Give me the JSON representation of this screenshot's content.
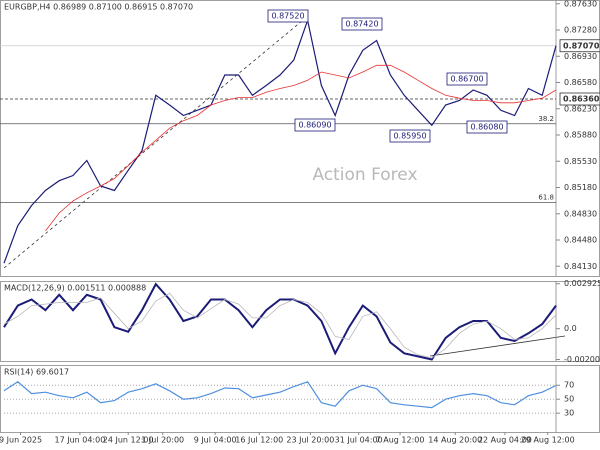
{
  "chart_data": [
    {
      "type": "line",
      "title": "EURGBP,H4 0.86989 0.87100 0.86915 0.87070",
      "watermark": "Action Forex",
      "xlim": [
        0,
        40
      ],
      "ylim": [
        0.84,
        0.8768
      ],
      "yticks": [
        {
          "value": 0.8763,
          "label": "0.87630"
        },
        {
          "value": 0.8728,
          "label": "0.87280"
        },
        {
          "value": 0.8693,
          "label": "0.86930"
        },
        {
          "value": 0.8658,
          "label": "0.86580"
        },
        {
          "value": 0.8623,
          "label": "0.86230"
        },
        {
          "value": 0.8588,
          "label": "0.85880"
        },
        {
          "value": 0.8553,
          "label": "0.85530"
        },
        {
          "value": 0.8518,
          "label": "0.85180"
        },
        {
          "value": 0.8483,
          "label": "0.84830"
        },
        {
          "value": 0.8448,
          "label": "0.84480"
        },
        {
          "value": 0.8413,
          "label": "0.84130"
        }
      ],
      "price_labels": [
        {
          "value": 0.8707,
          "label": "0.87070"
        },
        {
          "value": 0.8636,
          "label": "0.86360"
        }
      ],
      "reference_lines": [
        {
          "value": 0.8603,
          "label": "38.2"
        },
        {
          "value": 0.8498,
          "label": "61.8"
        }
      ],
      "annotations": [
        "0.87520",
        "0.87420",
        "0.86700",
        "0.86090",
        "0.85950",
        "0.86080"
      ],
      "series": [
        {
          "color": "#1c1c78",
          "values": [
            0.8417,
            0.8467,
            0.8494,
            0.8514,
            0.8527,
            0.8534,
            0.8554,
            0.852,
            0.8514,
            0.8541,
            0.8567,
            0.8641,
            0.8628,
            0.8614,
            0.8621,
            0.8628,
            0.8668,
            0.8668,
            0.8641,
            0.8654,
            0.8668,
            0.8688,
            0.8741,
            0.8654,
            0.8614,
            0.8668,
            0.8701,
            0.8714,
            0.8668,
            0.8641,
            0.8621,
            0.8601,
            0.8628,
            0.8634,
            0.8648,
            0.8641,
            0.8621,
            0.8614,
            0.865,
            0.8641,
            0.8707
          ]
        },
        {
          "color": "#e8302f",
          "values": [
            null,
            null,
            null,
            0.846,
            0.8484,
            0.85,
            0.8511,
            0.852,
            0.853,
            0.8547,
            0.8565,
            0.8581,
            0.8597,
            0.8607,
            0.8614,
            0.8628,
            0.8634,
            0.8638,
            0.8638,
            0.8645,
            0.865,
            0.8654,
            0.8661,
            0.8672,
            0.8668,
            0.8664,
            0.8672,
            0.8681,
            0.8681,
            0.8672,
            0.8661,
            0.865,
            0.8641,
            0.8637,
            0.8634,
            0.8634,
            0.8631,
            0.8631,
            0.8634,
            0.8637,
            0.8648
          ]
        }
      ]
    },
    {
      "type": "line",
      "title": "MACD(12,26,9) 0.001511 0.000888",
      "xlim": [
        0,
        40
      ],
      "ylim": [
        -0.0021,
        0.0031
      ],
      "yticks": [
        0.002925,
        {
          "value": 0,
          "label": "0.0"
        },
        -0.002002
      ],
      "series": [
        {
          "color": "#1c1c78",
          "values": [
            0.0001,
            0.0015,
            0.0019,
            0.0012,
            0.0022,
            0.0012,
            0.0022,
            0.0019,
            0.0001,
            -0.0002,
            0.0012,
            0.0029,
            0.0019,
            0.0005,
            0.0008,
            0.0019,
            0.0019,
            0.0012,
            0.0001,
            0.0012,
            0.0019,
            0.0019,
            0.0015,
            0.0005,
            -0.0016,
            0.0001,
            0.0015,
            0.0008,
            -0.0009,
            -0.0016,
            -0.0018,
            -0.002,
            -0.0006,
            0.0001,
            0.0005,
            0.0005,
            -0.0006,
            -0.0008,
            -0.0003,
            0.0003,
            0.0015
          ]
        },
        {
          "color": "#b8b8b8",
          "values": [
            0.0003,
            0.0008,
            0.0015,
            0.0016,
            0.0017,
            0.0017,
            0.0017,
            0.002,
            0.001,
            0,
            0.0005,
            0.0018,
            0.0023,
            0.0012,
            0.0007,
            0.0013,
            0.0019,
            0.0016,
            0.0007,
            0.0007,
            0.0015,
            0.0019,
            0.0017,
            0.001,
            -0.0005,
            -0.0007,
            0.0008,
            0.0011,
            0,
            -0.0012,
            -0.0017,
            -0.0019,
            -0.0013,
            -0.0003,
            0.0003,
            0.0005,
            0,
            -0.0007,
            -0.0006,
            0,
            0.0009
          ]
        }
      ]
    },
    {
      "type": "line",
      "title": "RSI(14) 69.6017",
      "xlim": [
        0,
        40
      ],
      "ylim": [
        3,
        99
      ],
      "yticks": [
        70,
        50,
        30
      ],
      "grid": true,
      "xticks": [
        {
          "value": 1.2,
          "label": "9 Jun 2025"
        },
        {
          "value": 5.5,
          "label": "17 Jun 04:00"
        },
        {
          "value": 9,
          "label": "24 Jun 12:00"
        },
        {
          "value": 11.5,
          "label": "1 Jul 20:00"
        },
        {
          "value": 15.3,
          "label": "9 Jul 04:00"
        },
        {
          "value": 18.5,
          "label": "16 Jul 12:00"
        },
        {
          "value": 22.2,
          "label": "23 Jul 20:00"
        },
        {
          "value": 25.7,
          "label": "31 Jul 04:00"
        },
        {
          "value": 28.7,
          "label": "7 Aug 12:00"
        },
        {
          "value": 32.7,
          "label": "14 Aug 20:00"
        },
        {
          "value": 36.3,
          "label": "22 Aug 04:00"
        },
        {
          "value": 39.4,
          "label": "29 Aug 12:00"
        }
      ],
      "series": [
        {
          "color": "#4f8fe0",
          "values": [
            62,
            75,
            58,
            60,
            55,
            52,
            60,
            45,
            48,
            60,
            65,
            72,
            62,
            50,
            52,
            58,
            66,
            65,
            52,
            56,
            60,
            68,
            75,
            45,
            40,
            62,
            70,
            65,
            45,
            42,
            40,
            38,
            50,
            55,
            58,
            55,
            45,
            42,
            55,
            60,
            69.6017
          ]
        }
      ]
    }
  ]
}
